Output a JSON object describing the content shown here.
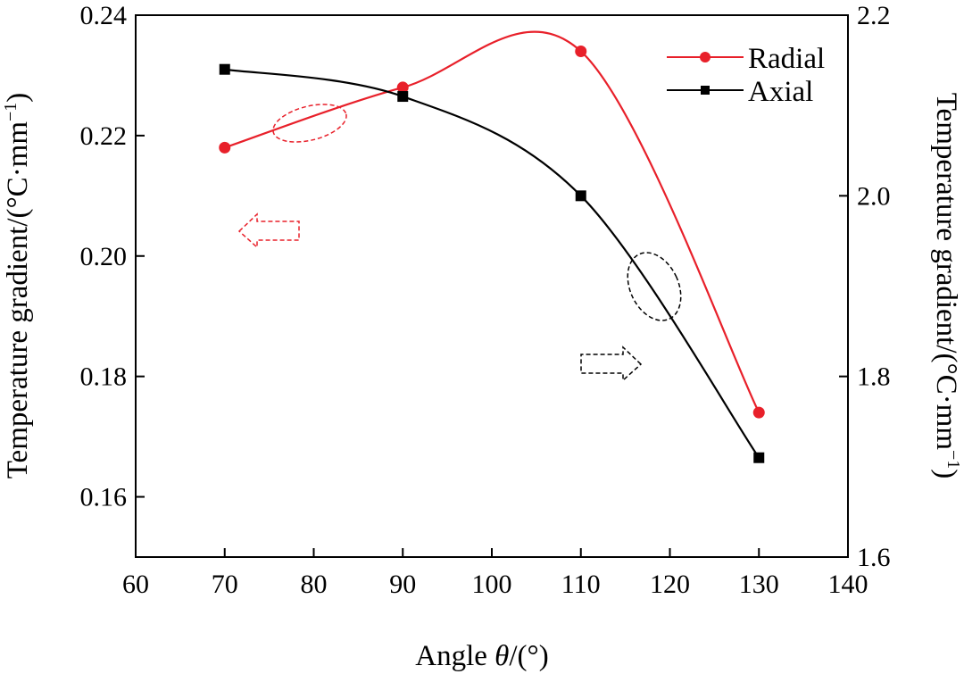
{
  "chart_data": {
    "type": "line",
    "x": [
      70,
      90,
      110,
      130
    ],
    "xlabel_main": "Angle ",
    "xlabel_symbol": "θ",
    "xlabel_unit": "/(°)",
    "xlim": [
      60,
      140
    ],
    "xticks": [
      "60",
      "70",
      "80",
      "90",
      "100",
      "110",
      "120",
      "130",
      "140"
    ],
    "ylabel_left": "Temperature gradient/(°C·mm",
    "ylabel_right": "Temperature gradient/(°C·mm",
    "ylabel_sup": "−1",
    "ylabel_close": ")",
    "ylim_left": [
      0.15,
      0.24
    ],
    "ylim_right": [
      1.6,
      2.2
    ],
    "yticks_left": [
      "0.16",
      "0.18",
      "0.20",
      "0.22",
      "0.24"
    ],
    "yticks_right": [
      "1.6",
      "1.8",
      "2.0",
      "2.2"
    ],
    "legend_position": "top-right",
    "grid": false,
    "series": [
      {
        "name": "Radial",
        "axis": "left",
        "color": "#e8202a",
        "marker": "circle",
        "values": [
          0.218,
          0.228,
          0.234,
          0.174
        ]
      },
      {
        "name": "Axial",
        "axis": "right",
        "color": "#000000",
        "marker": "square",
        "values": [
          2.14,
          2.11,
          2.0,
          1.71
        ]
      }
    ]
  }
}
